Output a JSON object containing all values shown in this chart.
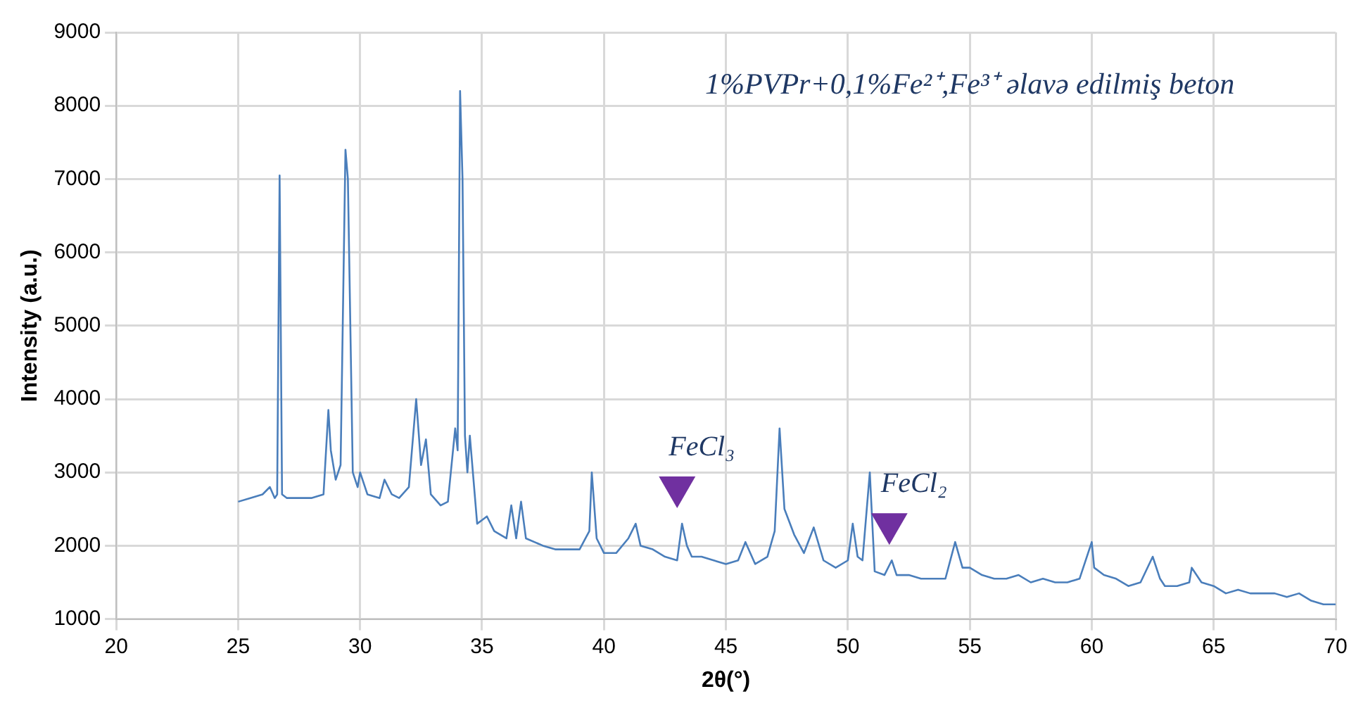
{
  "chart_data": {
    "type": "line",
    "title": "1%PVPr+0,1%Fe²⁺,Fe³⁺ əlavə edilmiş beton",
    "xlabel": "2θ(°)",
    "ylabel": "Intensity (a.u.)",
    "x": [
      25,
      25.5,
      26,
      26.3,
      26.5,
      26.6,
      26.7,
      26.8,
      27,
      27.5,
      28,
      28.5,
      28.7,
      28.8,
      29,
      29.2,
      29.4,
      29.5,
      29.7,
      29.9,
      30,
      30.3,
      30.8,
      31,
      31.3,
      31.6,
      32,
      32.3,
      32.5,
      32.7,
      32.9,
      33.3,
      33.6,
      33.9,
      34,
      34.1,
      34.2,
      34.3,
      34.4,
      34.5,
      34.8,
      35,
      35.2,
      35.5,
      36,
      36.2,
      36.4,
      36.6,
      36.8,
      37.5,
      38,
      39,
      39.4,
      39.5,
      39.7,
      40,
      40.5,
      41,
      41.3,
      41.5,
      42,
      42.5,
      43,
      43.2,
      43.4,
      43.6,
      44,
      44.5,
      45,
      45.5,
      45.8,
      46.2,
      46.7,
      47,
      47.2,
      47.4,
      47.8,
      48.2,
      48.6,
      49,
      49.5,
      50,
      50.2,
      50.4,
      50.6,
      50.9,
      51.1,
      51.5,
      51.8,
      52,
      52.5,
      53,
      53.5,
      54,
      54.4,
      54.7,
      55,
      55.5,
      56,
      56.5,
      57,
      57.5,
      58,
      58.5,
      59,
      59.5,
      60,
      60.1,
      60.5,
      61,
      61.5,
      62,
      62.5,
      62.8,
      63,
      63.5,
      64,
      64.1,
      64.5,
      65,
      65.5,
      66,
      66.5,
      67,
      67.5,
      68,
      68.5,
      69,
      69.5,
      70
    ],
    "series": [
      {
        "type": "scatter",
        "color": "#7030a0",
        "marker": "triangle",
        "x": [
          43,
          51.7
        ],
        "values": [
          2800,
          2300
        ]
      },
      {
        "color": "#4a7ebb",
        "values": [
          2600,
          2650,
          2700,
          2800,
          2650,
          2700,
          7050,
          2700,
          2650,
          2650,
          2650,
          2700,
          3850,
          3300,
          2900,
          3100,
          7400,
          7000,
          3000,
          2800,
          3000,
          2700,
          2650,
          2900,
          2700,
          2650,
          2800,
          4000,
          3100,
          3450,
          2700,
          2550,
          2600,
          3600,
          3300,
          8200,
          7000,
          3500,
          3000,
          3500,
          2300,
          2350,
          2400,
          2200,
          2100,
          2550,
          2100,
          2600,
          2100,
          2000,
          1950,
          1950,
          2200,
          3000,
          2100,
          1900,
          1900,
          2100,
          2300,
          2000,
          1950,
          1850,
          1800,
          2300,
          2000,
          1850,
          1850,
          1800,
          1750,
          1800,
          2050,
          1750,
          1850,
          2200,
          3600,
          2500,
          2150,
          1900,
          2250,
          1800,
          1700,
          1800,
          2300,
          1850,
          1800,
          3000,
          1650,
          1600,
          1800,
          1600,
          1600,
          1550,
          1550,
          1550,
          2050,
          1700,
          1700,
          1600,
          1550,
          1550,
          1600,
          1500,
          1550,
          1500,
          1500,
          1550,
          2050,
          1700,
          1600,
          1550,
          1450,
          1500,
          1850,
          1550,
          1450,
          1450,
          1500,
          1700,
          1500,
          1450,
          1350,
          1400,
          1350,
          1350,
          1350,
          1300,
          1350,
          1250,
          1200,
          1200
        ]
      }
    ],
    "xlim": [
      20,
      70
    ],
    "xticks": [
      20,
      25,
      30,
      35,
      40,
      45,
      50,
      55,
      60,
      65,
      70
    ],
    "ylim": [
      1000,
      9000
    ],
    "yticks": [
      1000,
      2000,
      3000,
      4000,
      5000,
      6000,
      7000,
      8000,
      9000
    ],
    "grid": true,
    "marker": "none",
    "line_style": "solid",
    "annotations": [
      {
        "text": "FeCl₃",
        "x": 43,
        "y": 2800
      },
      {
        "text": "FeCl₂",
        "x": 51.7,
        "y": 2300
      }
    ]
  }
}
